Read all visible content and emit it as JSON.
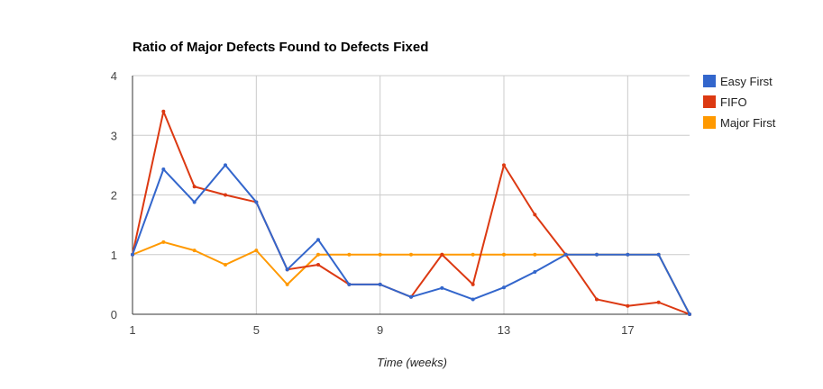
{
  "chart_data": {
    "type": "line",
    "title": "Ratio of Major Defects Found to Defects Fixed",
    "xlabel": "Time (weeks)",
    "ylabel": "",
    "xlim": [
      1,
      19
    ],
    "ylim": [
      0,
      4
    ],
    "x_ticks": [
      1,
      5,
      9,
      13,
      17
    ],
    "y_ticks": [
      0,
      1,
      2,
      3,
      4
    ],
    "grid": true,
    "legend_position": "right",
    "x": [
      1,
      2,
      3,
      4,
      5,
      6,
      7,
      8,
      9,
      10,
      11,
      12,
      13,
      14,
      15,
      16,
      17,
      18,
      19
    ],
    "series": [
      {
        "name": "Easy First",
        "color": "#3366cc",
        "values": [
          1.0,
          2.43,
          1.88,
          2.5,
          1.88,
          0.75,
          1.25,
          0.5,
          0.5,
          0.29,
          0.44,
          0.25,
          0.45,
          0.71,
          1.0,
          1.0,
          1.0,
          1.0,
          0.0
        ]
      },
      {
        "name": "FIFO",
        "color": "#dc3912",
        "values": [
          1.0,
          3.4,
          2.14,
          2.0,
          1.88,
          0.75,
          0.83,
          0.5,
          0.5,
          0.29,
          1.0,
          0.5,
          2.5,
          1.67,
          1.0,
          0.25,
          0.14,
          0.2,
          0.0
        ]
      },
      {
        "name": "Major First",
        "color": "#ff9900",
        "values": [
          1.0,
          1.21,
          1.07,
          0.83,
          1.07,
          0.5,
          1.0,
          1.0,
          1.0,
          1.0,
          1.0,
          1.0,
          1.0,
          1.0,
          1.0,
          1.0,
          1.0,
          1.0,
          0.0
        ]
      }
    ]
  }
}
